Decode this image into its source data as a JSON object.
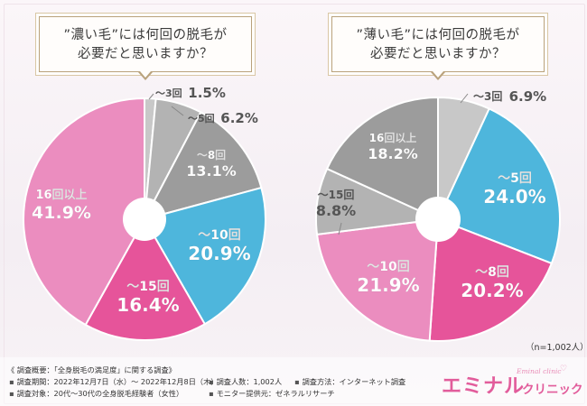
{
  "chart_data": [
    {
      "type": "pie",
      "title_line1": "”濃い毛”には何回の脱毛が",
      "title_line2": "必要だと思いますか？",
      "slices": [
        {
          "label": "〜3回",
          "value_label": "1.5%",
          "value": 1.5,
          "color": "#c8c8c8",
          "label_color": "#555555"
        },
        {
          "label": "〜5回",
          "value_label": "6.2%",
          "value": 6.2,
          "color": "#b3b3b3",
          "label_color": "#555555"
        },
        {
          "label": "〜8回",
          "value_label": "13.1%",
          "value": 13.1,
          "color": "#9c9c9c",
          "label_color": "#ffffff"
        },
        {
          "label": "〜10回",
          "value_label": "20.9%",
          "value": 20.9,
          "color": "#4eb6dc",
          "label_color": "#ffffff"
        },
        {
          "label": "〜15回",
          "value_label": "16.4%",
          "value": 16.4,
          "color": "#e6549a",
          "label_color": "#ffffff"
        },
        {
          "label": "16回以上",
          "value_label": "41.9%",
          "value": 41.9,
          "color": "#eb8dbf",
          "label_color": "#ffffff"
        }
      ]
    },
    {
      "type": "pie",
      "title_line1": "”薄い毛”には何回の脱毛が",
      "title_line2": "必要だと思いますか？",
      "slices": [
        {
          "label": "〜3回",
          "value_label": "6.9%",
          "value": 6.9,
          "color": "#c8c8c8",
          "label_color": "#555555"
        },
        {
          "label": "〜5回",
          "value_label": "24.0%",
          "value": 24.0,
          "color": "#4eb6dc",
          "label_color": "#ffffff"
        },
        {
          "label": "〜8回",
          "value_label": "20.2%",
          "value": 20.2,
          "color": "#e6549a",
          "label_color": "#ffffff"
        },
        {
          "label": "〜10回",
          "value_label": "21.9%",
          "value": 21.9,
          "color": "#eb8dbf",
          "label_color": "#ffffff"
        },
        {
          "label": "〜15回",
          "value_label": "8.8%",
          "value": 8.8,
          "color": "#b3b3b3",
          "label_color": "#555555"
        },
        {
          "label": "16回以上",
          "value_label": "18.2%",
          "value": 18.2,
          "color": "#9c9c9c",
          "label_color": "#ffffff"
        }
      ]
    }
  ],
  "sample_note": "（n=1,002人）",
  "footer": {
    "overview": "《 調査概要：「全身脱毛の満足度」に関する調査》",
    "period": "調査期間：2022年12月7日（水）〜 2022年12月8日（木）",
    "respondents": "調査人数：1,002人",
    "method": "調査方法：インターネット調査",
    "target": "調査対象：20代〜30代の全身脱毛経験者（女性）",
    "provider": "モニター提供元：ゼネラルリサーチ"
  },
  "logo": {
    "main": "エミナル",
    "sub": "クリニック",
    "script": "Eminal clinic"
  }
}
